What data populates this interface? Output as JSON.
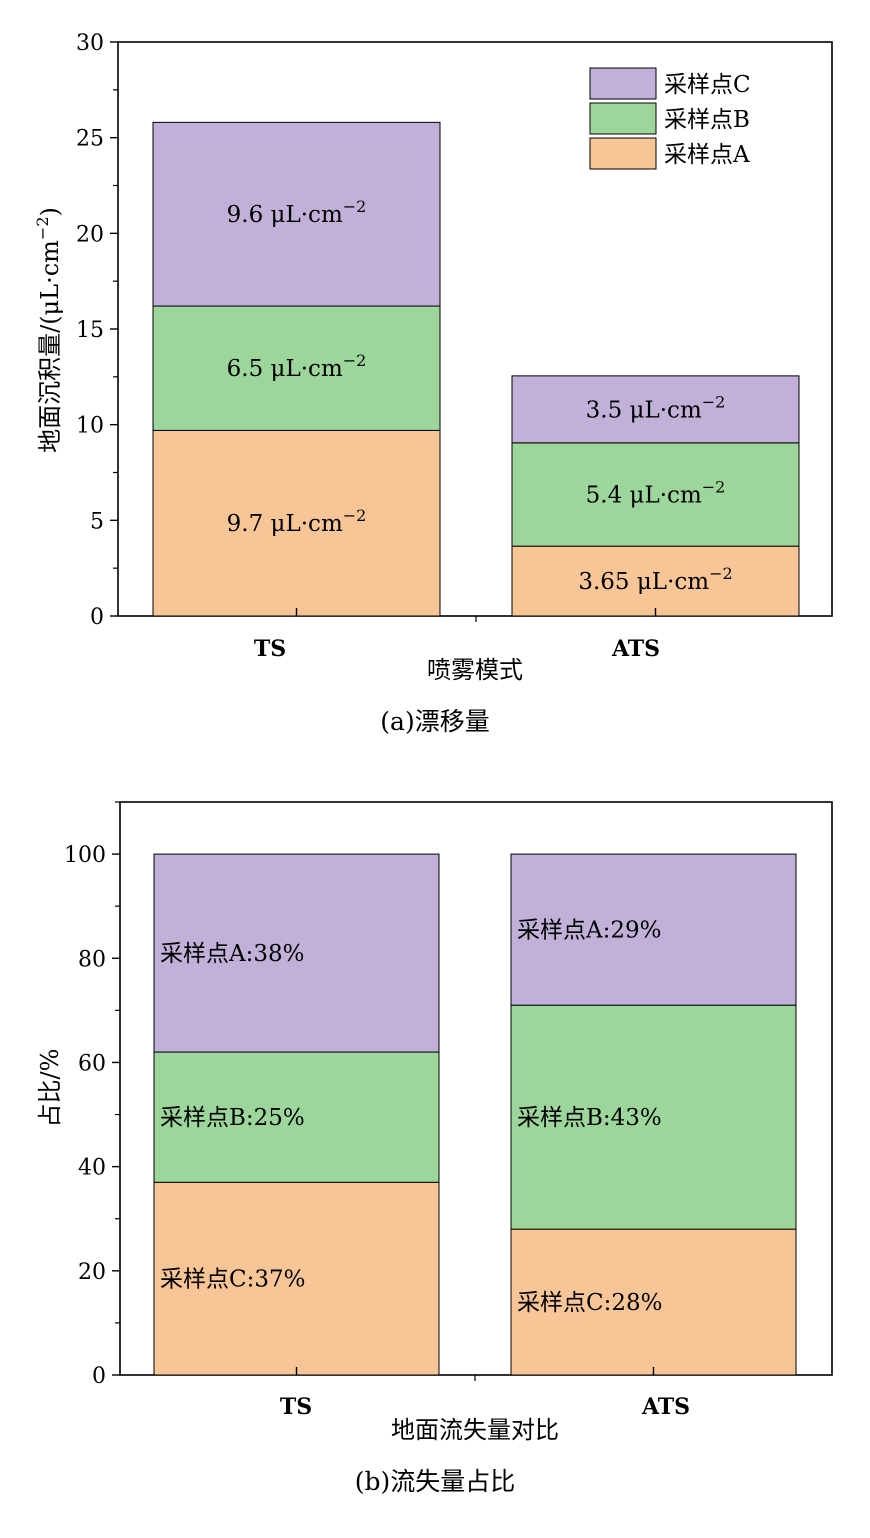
{
  "colors": {
    "A": "#f8c596",
    "B": "#9dd69a",
    "C": "#c1b1d8",
    "stroke": "#000000"
  },
  "chart_data": [
    {
      "type": "bar",
      "stacked": true,
      "caption": "(a)漂移量",
      "xlabel": "喷雾模式",
      "ylabel": "地面沉积量/(μL·cm⁻²)",
      "categories": [
        "TS",
        "ATS"
      ],
      "ylim": [
        0,
        30
      ],
      "yticks": [
        0,
        5,
        10,
        15,
        20,
        25,
        30
      ],
      "series": [
        {
          "name": "采样点A",
          "key": "A",
          "values": [
            9.7,
            3.65
          ],
          "labels": [
            "9.7 μL·cm⁻²",
            "3.65 μL·cm⁻²"
          ]
        },
        {
          "name": "采样点B",
          "key": "B",
          "values": [
            6.5,
            5.4
          ],
          "labels": [
            "6.5 μL·cm⁻²",
            "5.4 μL·cm⁻²"
          ]
        },
        {
          "name": "采样点C",
          "key": "C",
          "values": [
            9.6,
            3.5
          ],
          "labels": [
            "9.6 μL·cm⁻²",
            "3.5 μL·cm⁻²"
          ]
        }
      ],
      "legend": [
        "采样点C",
        "采样点B",
        "采样点A"
      ],
      "legend_placement": "top-right",
      "grid": false
    },
    {
      "type": "bar",
      "stacked": true,
      "caption": "(b)流失量占比",
      "xlabel": "地面流失量对比",
      "ylabel": "占比/%",
      "categories": [
        "TS",
        "ATS"
      ],
      "ylim": [
        0,
        110
      ],
      "yticks": [
        0,
        20,
        40,
        60,
        80,
        100
      ],
      "series": [
        {
          "key": "A",
          "values": [
            37,
            28
          ],
          "labels": [
            "采样点C:37%",
            "采样点C:28%"
          ]
        },
        {
          "key": "B",
          "values": [
            25,
            43
          ],
          "labels": [
            "采样点B:25%",
            "采样点B:43%"
          ]
        },
        {
          "key": "C",
          "values": [
            38,
            29
          ],
          "labels": [
            "采样点A:38%",
            "采样点A:29%"
          ]
        }
      ],
      "grid": false
    }
  ]
}
